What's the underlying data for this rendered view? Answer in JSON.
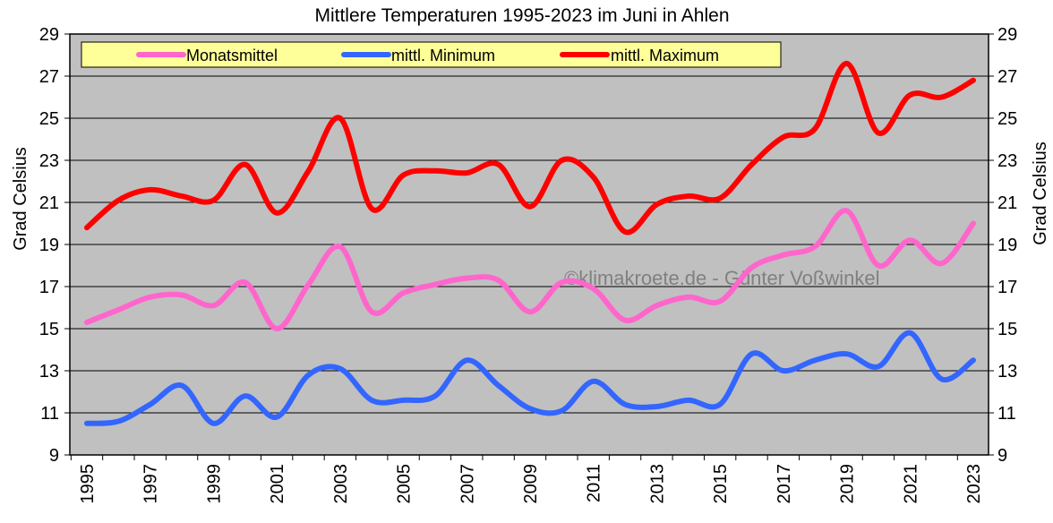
{
  "chart_data": {
    "type": "line",
    "title": "Mittlere Temperaturen 1995-2023 im Juni in Ahlen",
    "ylabel": "Grad Celsius",
    "ylabel_right": "Grad Celsius",
    "ylim": [
      9,
      29
    ],
    "yticks": [
      9,
      11,
      13,
      15,
      17,
      19,
      21,
      23,
      25,
      27,
      29
    ],
    "grid": true,
    "legend_position": "top",
    "watermark": "©klimakroete.de - Günter Voßwinkel",
    "x": [
      1995,
      1996,
      1997,
      1998,
      1999,
      2000,
      2001,
      2002,
      2003,
      2004,
      2005,
      2006,
      2007,
      2008,
      2009,
      2010,
      2011,
      2012,
      2013,
      2014,
      2015,
      2016,
      2017,
      2018,
      2019,
      2020,
      2021,
      2022,
      2023
    ],
    "xtick_labels": [
      "1995",
      "1997",
      "1999",
      "2001",
      "2003",
      "2005",
      "2007",
      "2009",
      "2011",
      "2013",
      "2015",
      "2017",
      "2019",
      "2021",
      "2023"
    ],
    "series": [
      {
        "name": "Monatsmittel",
        "color": "#ff66cc",
        "values": [
          15.3,
          15.9,
          16.5,
          16.6,
          16.1,
          17.2,
          15.0,
          17.1,
          18.9,
          15.8,
          16.7,
          17.1,
          17.4,
          17.3,
          15.8,
          17.2,
          16.9,
          15.4,
          16.1,
          16.5,
          16.3,
          17.9,
          18.5,
          18.9,
          20.6,
          18.0,
          19.2,
          18.1,
          20.0
        ]
      },
      {
        "name": "mittl. Minimum",
        "color": "#3366ff",
        "values": [
          10.5,
          10.6,
          11.4,
          12.3,
          10.5,
          11.8,
          10.8,
          12.8,
          13.1,
          11.6,
          11.6,
          11.8,
          13.5,
          12.3,
          11.2,
          11.1,
          12.5,
          11.4,
          11.3,
          11.6,
          11.4,
          13.8,
          13.0,
          13.5,
          13.8,
          13.2,
          14.8,
          12.6,
          13.5
        ]
      },
      {
        "name": "mittl. Maximum",
        "color": "#ff0000",
        "values": [
          19.8,
          21.1,
          21.6,
          21.3,
          21.1,
          22.8,
          20.5,
          22.5,
          25.0,
          20.7,
          22.3,
          22.5,
          22.4,
          22.8,
          20.8,
          23.0,
          22.2,
          19.6,
          20.9,
          21.3,
          21.2,
          22.8,
          24.1,
          24.5,
          27.6,
          24.3,
          26.1,
          26.0,
          26.8
        ]
      }
    ],
    "colors": {
      "plot_background": "#c0c0c0",
      "legend_background": "#ffff99"
    }
  }
}
